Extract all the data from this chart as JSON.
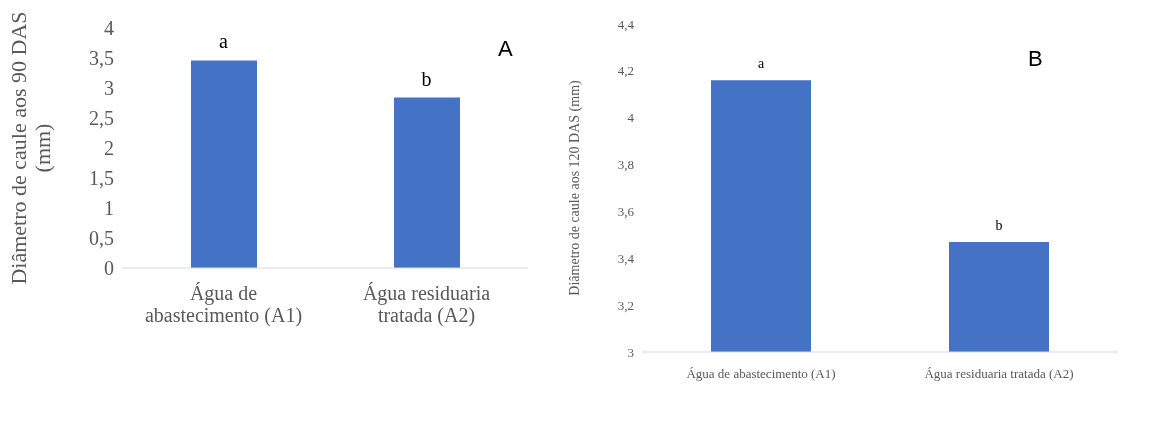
{
  "chart_data": [
    {
      "type": "bar",
      "ylabel": "Diâmetro de caule aos 90 DAS (mm)",
      "categories": [
        "Água de abastecimento (A1)",
        "Água residuaria tratada (A2)"
      ],
      "values": [
        3.46,
        2.84
      ],
      "color": "#4472c4",
      "ylim": [
        0,
        4
      ],
      "yticks": [
        0,
        {
          "value": 0.5,
          "label": "0,5"
        },
        1,
        {
          "value": 1.5,
          "label": "1,5"
        },
        2,
        {
          "value": 2.5,
          "label": "2,5"
        },
        3,
        {
          "value": 3.5,
          "label": "3,5"
        },
        4
      ],
      "grid": false,
      "annotations": [
        "A",
        {
          "text": "a",
          "x": "Água de abastecimento (A1)",
          "y": 3.46
        },
        {
          "text": "b",
          "x": "Água residuaria tratada (A2)",
          "y": 2.84
        }
      ]
    },
    {
      "type": "bar",
      "ylabel": "Diâmetro de caule aos 120 DAS (mm)",
      "categories": [
        "Água de abastecimento (A1)",
        "Água residuaria tratada (A2)"
      ],
      "values": [
        4.16,
        3.47
      ],
      "color": "#4472c4",
      "ylim": [
        3,
        4.4
      ],
      "yticks": [
        3,
        {
          "value": 3.2,
          "label": "3,2"
        },
        {
          "value": 3.4,
          "label": "3,4"
        },
        {
          "value": 3.6,
          "label": "3,6"
        },
        {
          "value": 3.8,
          "label": "3,8"
        },
        4,
        {
          "value": 4.2,
          "label": "4,2"
        },
        {
          "value": 4.4,
          "label": "4,4"
        }
      ],
      "grid": false,
      "annotations": [
        "B",
        {
          "text": "a",
          "x": "Água de abastecimento (A1)",
          "y": 4.16
        },
        {
          "text": "b",
          "x": "Água residuaria tratada (A2)",
          "y": 3.47
        }
      ]
    }
  ]
}
